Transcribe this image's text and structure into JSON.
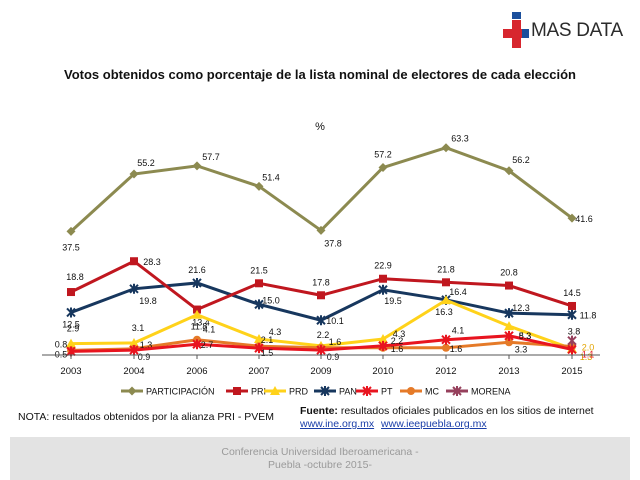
{
  "brand": {
    "name": "MAS DATA",
    "logo_icon": "red-cross-icon",
    "colors": {
      "red": "#d7262e",
      "blue": "#1b4f9c"
    }
  },
  "chart_data": {
    "type": "line",
    "title": "Votos obtenidos como porcentaje de la lista nominal de electores de cada elección",
    "unit": "%",
    "categories": [
      "2003",
      "2004",
      "2006",
      "2007",
      "2009",
      "2010",
      "2012",
      "2013",
      "2015"
    ],
    "ylim": [
      0,
      70
    ],
    "grid": false,
    "legend_position": "bottom",
    "series": [
      {
        "name": "PARTICIPACIÓN",
        "color": "#8c8a50",
        "marker": "diamond",
        "values": [
          37.5,
          55.2,
          57.7,
          51.4,
          37.8,
          57.2,
          63.3,
          56.2,
          41.6
        ],
        "labels": [
          "37.5",
          "55.2",
          "57.7",
          "51.4",
          "37.8",
          "57.2",
          "63.3",
          "56.2",
          "41.6"
        ]
      },
      {
        "name": "PRI",
        "color": "#c0171f",
        "marker": "square",
        "values": [
          18.8,
          28.3,
          13.4,
          21.5,
          17.8,
          22.9,
          21.8,
          20.8,
          14.5
        ],
        "labels": [
          "18.8",
          "28.3",
          "13.4",
          "21.5",
          "17.8",
          "22.9",
          "21.8",
          "20.8",
          "14.5"
        ]
      },
      {
        "name": "PRD",
        "color": "#ffd21a",
        "marker": "triangle",
        "values": [
          2.9,
          3.1,
          11.8,
          4.3,
          2.2,
          4.3,
          16.3,
          8.3,
          1.3
        ],
        "labels": [
          "2.9",
          "3.1",
          "11.8",
          "4.3",
          "2.2",
          "4.3",
          "16.3",
          "8.3",
          "1.3"
        ]
      },
      {
        "name": "PAN",
        "color": "#17375e",
        "marker": "star",
        "values": [
          12.5,
          19.8,
          21.6,
          15.0,
          10.1,
          19.5,
          16.4,
          12.3,
          11.8
        ],
        "labels": [
          "12.5",
          "19.8",
          "21.6",
          "15.0",
          "10.1",
          "19.5",
          "16.4",
          "12.3",
          "11.8"
        ]
      },
      {
        "name": "PT",
        "color": "#e8141f",
        "marker": "star",
        "values": [
          0.5,
          0.9,
          2.7,
          1.5,
          0.9,
          2.2,
          4.1,
          5.3,
          1.1
        ],
        "labels": [
          "0.5",
          "0.9",
          "2.7",
          "1.5",
          "0.9",
          "2.2",
          "4.1",
          "5.3",
          "1.1"
        ]
      },
      {
        "name": "MC",
        "color": "#e57a28",
        "marker": "circle",
        "values": [
          0.8,
          1.3,
          4.1,
          2.1,
          1.6,
          1.6,
          1.6,
          3.3,
          2.0
        ],
        "labels": [
          "0.8",
          "1.3",
          "4.1",
          "2.1",
          "1.6",
          "1.6",
          "1.6",
          "3.3",
          "2.0"
        ]
      },
      {
        "name": "MORENA",
        "color": "#96405c",
        "marker": "star",
        "values": [
          null,
          null,
          null,
          null,
          null,
          null,
          null,
          null,
          3.8
        ],
        "labels": [
          null,
          null,
          null,
          null,
          null,
          null,
          null,
          null,
          "3.8"
        ]
      }
    ]
  },
  "footnote": "NOTA: resultados obtenidos por la alianza PRI - PVEM",
  "source": {
    "label": "Fuente:",
    "text": "resultados oficiales publicados en los sitios de internet",
    "links": [
      "www.ine.org.mx",
      "www.ieepuebla.org.mx"
    ]
  },
  "footer": {
    "line1": "Conferencia Universidad Iberoamericana -",
    "line2": "Puebla -octubre 2015-"
  }
}
